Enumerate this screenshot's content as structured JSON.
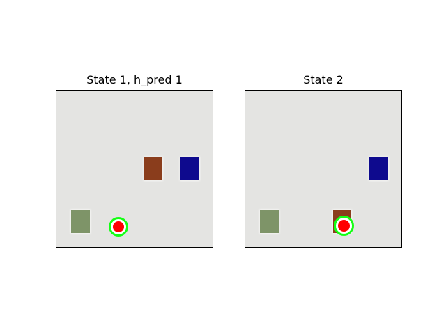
{
  "panels": [
    {
      "title": "State 1, h_pred 1",
      "objects": [
        "brown-block",
        "blue-block",
        "green-block",
        "red-circle-marker"
      ]
    },
    {
      "title": "State 2",
      "objects": [
        "blue-block",
        "green-block",
        "brown-block",
        "red-circle-marker"
      ]
    }
  ],
  "colors": {
    "background": "#e4e4e2",
    "brown_block": "#8a3d1c",
    "blue_block": "#0e0a8e",
    "green_block": "#7e9468",
    "marker_fill": "#ff0000",
    "marker_ring": "#14ff14"
  }
}
